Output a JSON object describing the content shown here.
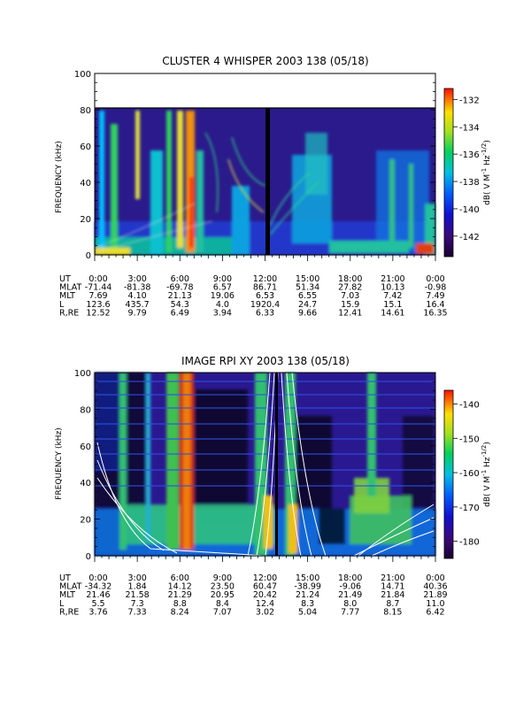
{
  "chart_data": [
    {
      "type": "heatmap",
      "title": "CLUSTER 4 WHISPER 2003 138 (05/18)",
      "ylabel": "FREQUENCY (kHz)",
      "ylim": [
        0,
        100
      ],
      "yticks": [
        "0",
        "20",
        "40",
        "60",
        "80",
        "100"
      ],
      "data_max_frequency": 80,
      "colorbar": {
        "label": "dB( V M^-1 Hz^-1/2 )",
        "range": [
          -143.5,
          -131.2
        ],
        "ticks": [
          "-132",
          "-134",
          "-136",
          "-138",
          "-140",
          "-142"
        ],
        "tick_values": [
          -132,
          -134,
          -136,
          -138,
          -140,
          -142
        ]
      },
      "x_hours": [
        0,
        3,
        6,
        9,
        12,
        15,
        18,
        21,
        24
      ],
      "ephemeris": [
        {
          "label": "UT",
          "values": [
            "0:00",
            "3:00",
            "6:00",
            "9:00",
            "12:00",
            "15:00",
            "18:00",
            "21:00",
            "0:00"
          ]
        },
        {
          "label": "MLAT",
          "values": [
            "-71.44",
            "-81.38",
            "-69.78",
            "6.57",
            "86.71",
            "51.34",
            "27.82",
            "10.13",
            "-0.98"
          ]
        },
        {
          "label": "MLT",
          "values": [
            "7.69",
            "4.10",
            "21.13",
            "19.06",
            "6.53",
            "6.55",
            "7.03",
            "7.42",
            "7.49"
          ]
        },
        {
          "label": "L",
          "values": [
            "123.6",
            "435.7",
            "54.3",
            "4.0",
            "1920.4",
            "24.7",
            "15.9",
            "15.1",
            "16.4"
          ]
        },
        {
          "label": "R,RE",
          "values": [
            "12.52",
            "9.79",
            "6.49",
            "3.94",
            "6.33",
            "9.66",
            "12.41",
            "14.61",
            "16.35"
          ]
        }
      ]
    },
    {
      "type": "heatmap",
      "title": "IMAGE RPI XY 2003 138 (05/18)",
      "ylabel": "FREQUENCY (kHz)",
      "ylim": [
        0,
        100
      ],
      "yticks": [
        "0",
        "20",
        "40",
        "60",
        "80",
        "100"
      ],
      "colorbar": {
        "label": "dB( V M^-1 Hz^-1/2 )",
        "range": [
          -185,
          -136
        ],
        "ticks": [
          "-140",
          "-150",
          "-160",
          "-170",
          "-180"
        ],
        "tick_values": [
          -140,
          -150,
          -160,
          -170,
          -180
        ]
      },
      "x_hours": [
        0,
        3,
        6,
        9,
        12,
        15,
        18,
        21,
        24
      ],
      "ephemeris": [
        {
          "label": "UT",
          "values": [
            "0:00",
            "3:00",
            "6:00",
            "9:00",
            "12:00",
            "15:00",
            "18:00",
            "21:00",
            "0:00"
          ]
        },
        {
          "label": "MLAT",
          "values": [
            "-34.32",
            "1.84",
            "14.12",
            "23.50",
            "60.47",
            "-38.99",
            "-9.06",
            "14.71",
            "40.36"
          ]
        },
        {
          "label": "MLT",
          "values": [
            "21.46",
            "21.58",
            "21.29",
            "20.95",
            "20.42",
            "21.24",
            "21.49",
            "21.84",
            "21.89"
          ]
        },
        {
          "label": "L",
          "values": [
            "5.5",
            "7.3",
            "8.8",
            "8.4",
            "12.4",
            "8.3",
            "8.0",
            "8.7",
            "11.0"
          ]
        },
        {
          "label": "R,RE",
          "values": [
            "3.76",
            "7.33",
            "8.24",
            "7.07",
            "3.02",
            "5.04",
            "7.77",
            "8.15",
            "6.42"
          ]
        }
      ]
    }
  ]
}
